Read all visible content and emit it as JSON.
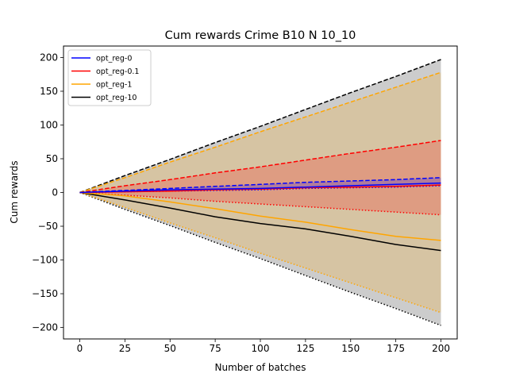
{
  "chart_data": {
    "type": "line",
    "title": "Cum rewards Crime B10 N 10_10",
    "xlabel": "Number of batches",
    "ylabel": "Cum rewards",
    "xlim": [
      -9,
      209
    ],
    "ylim": [
      -217,
      217
    ],
    "xticks": [
      0,
      25,
      50,
      75,
      100,
      125,
      150,
      175,
      200
    ],
    "yticks": [
      -200,
      -150,
      -100,
      -50,
      0,
      50,
      100,
      150,
      200
    ],
    "grid": false,
    "legend_position": "top-left",
    "series": [
      {
        "name": "opt_reg-0",
        "color": "#0000ff",
        "mean": [
          [
            0,
            0
          ],
          [
            25,
            2
          ],
          [
            50,
            4
          ],
          [
            75,
            5
          ],
          [
            100,
            6
          ],
          [
            125,
            8
          ],
          [
            150,
            10
          ],
          [
            175,
            12
          ],
          [
            200,
            14
          ]
        ],
        "upper": [
          [
            0,
            0
          ],
          [
            25,
            3
          ],
          [
            50,
            6
          ],
          [
            75,
            9
          ],
          [
            100,
            12
          ],
          [
            125,
            15
          ],
          [
            150,
            17
          ],
          [
            175,
            19
          ],
          [
            200,
            22
          ]
        ],
        "lower": [
          [
            0,
            0
          ],
          [
            25,
            1
          ],
          [
            50,
            2
          ],
          [
            75,
            3
          ],
          [
            100,
            4
          ],
          [
            125,
            6
          ],
          [
            150,
            7
          ],
          [
            175,
            8
          ],
          [
            200,
            10
          ]
        ]
      },
      {
        "name": "opt_reg-0.1",
        "color": "#ff0000",
        "mean": [
          [
            0,
            0
          ],
          [
            25,
            1
          ],
          [
            50,
            2
          ],
          [
            75,
            4
          ],
          [
            100,
            5
          ],
          [
            125,
            7
          ],
          [
            150,
            8
          ],
          [
            175,
            9
          ],
          [
            200,
            11
          ]
        ],
        "upper": [
          [
            0,
            0
          ],
          [
            25,
            10
          ],
          [
            50,
            19
          ],
          [
            75,
            29
          ],
          [
            100,
            38
          ],
          [
            125,
            48
          ],
          [
            150,
            58
          ],
          [
            175,
            67
          ],
          [
            200,
            77
          ]
        ],
        "lower": [
          [
            0,
            0
          ],
          [
            25,
            -4
          ],
          [
            50,
            -8
          ],
          [
            75,
            -13
          ],
          [
            100,
            -17
          ],
          [
            125,
            -21
          ],
          [
            150,
            -25
          ],
          [
            175,
            -29
          ],
          [
            200,
            -33
          ]
        ]
      },
      {
        "name": "opt_reg-1",
        "color": "#ffa500",
        "mean": [
          [
            0,
            0
          ],
          [
            25,
            -5
          ],
          [
            50,
            -14
          ],
          [
            75,
            -24
          ],
          [
            100,
            -35
          ],
          [
            125,
            -44
          ],
          [
            150,
            -55
          ],
          [
            175,
            -65
          ],
          [
            200,
            -71
          ]
        ],
        "upper": [
          [
            0,
            0
          ],
          [
            25,
            22
          ],
          [
            50,
            45
          ],
          [
            75,
            67
          ],
          [
            100,
            90
          ],
          [
            125,
            112
          ],
          [
            150,
            134
          ],
          [
            175,
            156
          ],
          [
            200,
            178
          ]
        ],
        "lower": [
          [
            0,
            0
          ],
          [
            25,
            -22
          ],
          [
            50,
            -45
          ],
          [
            75,
            -67
          ],
          [
            100,
            -90
          ],
          [
            125,
            -112
          ],
          [
            150,
            -134
          ],
          [
            175,
            -156
          ],
          [
            200,
            -178
          ]
        ]
      },
      {
        "name": "opt_reg-10",
        "color": "#000000",
        "mean": [
          [
            0,
            0
          ],
          [
            25,
            -11
          ],
          [
            50,
            -23
          ],
          [
            75,
            -36
          ],
          [
            100,
            -46
          ],
          [
            125,
            -54
          ],
          [
            150,
            -65
          ],
          [
            175,
            -77
          ],
          [
            200,
            -86
          ]
        ],
        "upper": [
          [
            0,
            0
          ],
          [
            25,
            25
          ],
          [
            50,
            49
          ],
          [
            75,
            74
          ],
          [
            100,
            98
          ],
          [
            125,
            123
          ],
          [
            150,
            148
          ],
          [
            175,
            172
          ],
          [
            200,
            197
          ]
        ],
        "lower": [
          [
            0,
            0
          ],
          [
            25,
            -25
          ],
          [
            50,
            -49
          ],
          [
            75,
            -74
          ],
          [
            100,
            -98
          ],
          [
            125,
            -123
          ],
          [
            150,
            -148
          ],
          [
            175,
            -172
          ],
          [
            200,
            -197
          ]
        ]
      }
    ]
  }
}
